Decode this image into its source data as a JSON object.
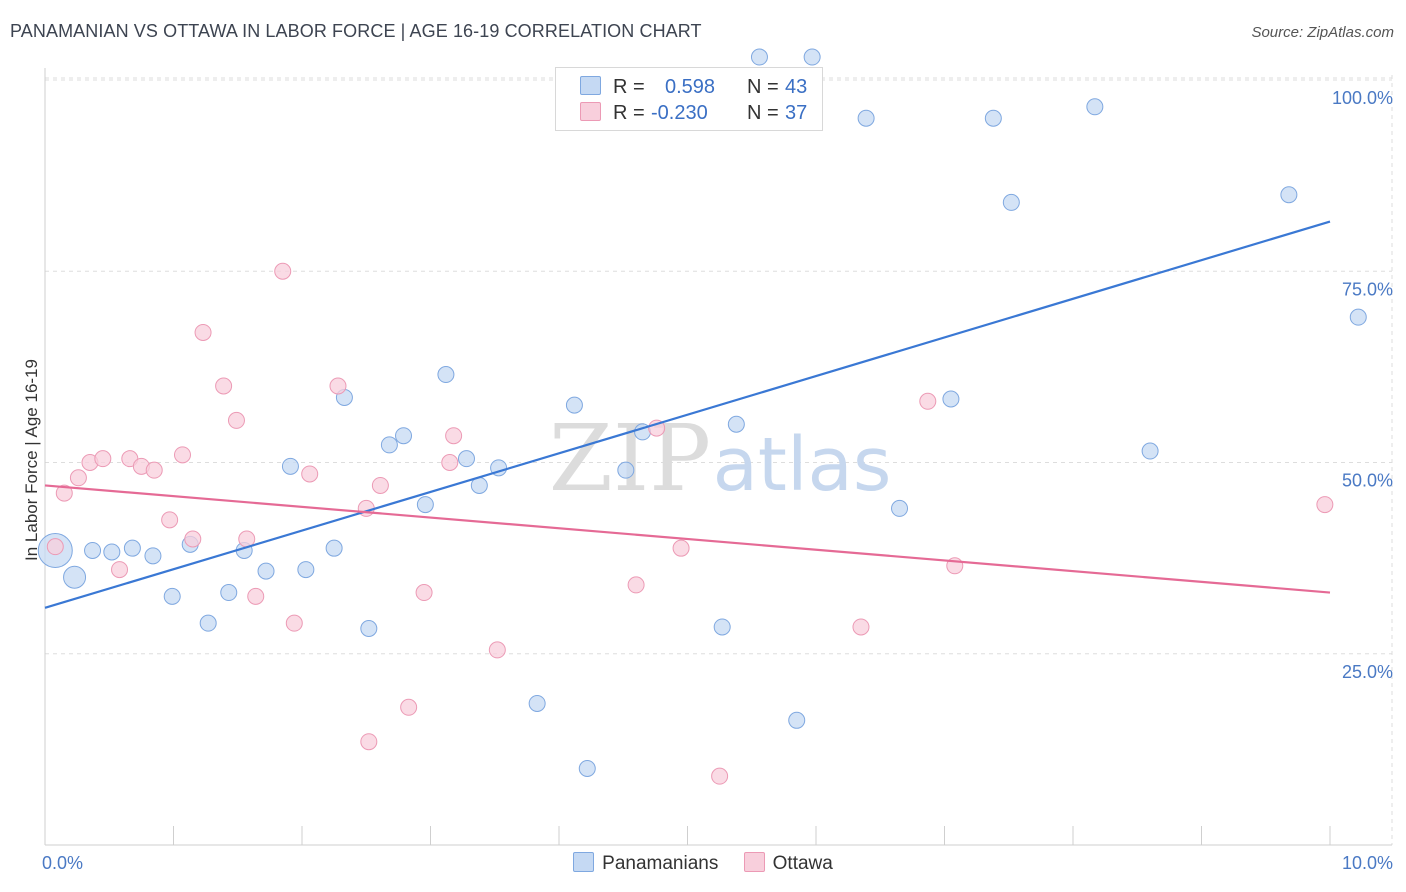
{
  "header": {
    "title": "PANAMANIAN VS OTTAWA IN LABOR FORCE | AGE 16-19 CORRELATION CHART",
    "source": "Source: ZipAtlas.com"
  },
  "watermark": {
    "zip": "ZIP",
    "atlas": "atlas"
  },
  "legend": {
    "rows": [
      {
        "r_label": "R =",
        "r_value": "0.598",
        "n_label": "N =",
        "n_value": "43",
        "color": "#9dbfea"
      },
      {
        "r_label": "R =",
        "r_value": "-0.230",
        "n_label": "N =",
        "n_value": "37",
        "color": "#f4a9bf"
      }
    ]
  },
  "bottom_legend": [
    {
      "label": "Panamanians",
      "color": "#9dbfea"
    },
    {
      "label": "Ottawa",
      "color": "#f4a9bf"
    }
  ],
  "colors": {
    "blue": "#3a78d4",
    "pink": "#e56a95",
    "blue_fill": "#c5d9f3",
    "pink_fill": "#f8cfdc"
  },
  "chart_data": {
    "type": "scatter",
    "title": "PANAMANIAN VS OTTAWA IN LABOR FORCE | AGE 16-19 CORRELATION CHART",
    "xlabel": "",
    "ylabel": "In Labor Force | Age 16-19",
    "xlim": [
      0,
      10
    ],
    "ylim": [
      0,
      102
    ],
    "x_tick_labels": [
      {
        "value": 0,
        "label": "0.0%"
      },
      {
        "value": 10,
        "label": "10.0%"
      }
    ],
    "y_tick_labels": [
      {
        "value": 25,
        "label": "25.0%"
      },
      {
        "value": 50,
        "label": "50.0%"
      },
      {
        "value": 75,
        "label": "75.0%"
      },
      {
        "value": 100,
        "label": "100.0%"
      }
    ],
    "series": [
      {
        "name": "Panamanians",
        "r": 0.598,
        "n": 43,
        "trend": {
          "x": [
            0,
            10
          ],
          "y": [
            31.0,
            81.5
          ]
        },
        "points": [
          [
            0.08,
            38.5,
            3
          ],
          [
            0.23,
            35.0,
            2
          ],
          [
            0.37,
            38.5,
            1
          ],
          [
            0.52,
            38.3,
            1
          ],
          [
            0.68,
            38.8,
            1
          ],
          [
            0.84,
            37.8,
            1
          ],
          [
            0.99,
            32.5,
            1
          ],
          [
            1.13,
            39.3,
            1
          ],
          [
            1.27,
            29.0,
            1
          ],
          [
            1.43,
            33.0,
            1
          ],
          [
            1.55,
            38.5,
            1
          ],
          [
            1.72,
            35.8,
            1
          ],
          [
            1.91,
            49.5,
            1
          ],
          [
            2.03,
            36.0,
            1
          ],
          [
            2.25,
            38.8,
            1
          ],
          [
            2.33,
            58.5,
            1
          ],
          [
            2.52,
            28.3,
            1
          ],
          [
            2.68,
            52.3,
            1
          ],
          [
            2.79,
            53.5,
            1
          ],
          [
            2.96,
            44.5,
            1
          ],
          [
            3.12,
            61.5,
            1
          ],
          [
            3.28,
            50.5,
            1
          ],
          [
            3.38,
            47.0,
            1
          ],
          [
            3.53,
            49.3,
            1
          ],
          [
            3.83,
            18.5,
            1
          ],
          [
            4.12,
            57.5,
            1
          ],
          [
            4.22,
            10.0,
            1
          ],
          [
            4.52,
            49.0,
            1
          ],
          [
            4.65,
            54.0,
            1
          ],
          [
            5.27,
            28.5,
            1
          ],
          [
            5.38,
            55.0,
            1
          ],
          [
            5.56,
            103.0,
            1
          ],
          [
            5.85,
            16.3,
            1
          ],
          [
            5.97,
            103.0,
            1
          ],
          [
            6.39,
            95.0,
            1
          ],
          [
            6.65,
            44.0,
            1
          ],
          [
            7.05,
            58.3,
            1
          ],
          [
            7.38,
            95.0,
            1
          ],
          [
            7.52,
            84.0,
            1
          ],
          [
            8.17,
            96.5,
            1
          ],
          [
            8.6,
            51.5,
            1
          ],
          [
            9.68,
            85.0,
            1
          ],
          [
            10.22,
            69.0,
            1
          ]
        ]
      },
      {
        "name": "Ottawa",
        "r": -0.23,
        "n": 37,
        "trend": {
          "x": [
            0,
            10
          ],
          "y": [
            47.0,
            33.0
          ]
        },
        "points": [
          [
            0.08,
            39.0,
            1
          ],
          [
            0.15,
            46.0,
            1
          ],
          [
            0.26,
            48.0,
            1
          ],
          [
            0.35,
            50.0,
            1
          ],
          [
            0.45,
            50.5,
            1
          ],
          [
            0.58,
            36.0,
            1
          ],
          [
            0.66,
            50.5,
            1
          ],
          [
            0.75,
            49.5,
            1
          ],
          [
            0.85,
            49.0,
            1
          ],
          [
            0.97,
            42.5,
            1
          ],
          [
            1.07,
            51.0,
            1
          ],
          [
            1.15,
            40.0,
            1
          ],
          [
            1.23,
            67.0,
            1
          ],
          [
            1.39,
            60.0,
            1
          ],
          [
            1.49,
            55.5,
            1
          ],
          [
            1.57,
            40.0,
            1
          ],
          [
            1.64,
            32.5,
            1
          ],
          [
            1.85,
            75.0,
            1
          ],
          [
            1.94,
            29.0,
            1
          ],
          [
            2.06,
            48.5,
            1
          ],
          [
            2.28,
            60.0,
            1
          ],
          [
            2.5,
            44.0,
            1
          ],
          [
            2.52,
            13.5,
            1
          ],
          [
            2.61,
            47.0,
            1
          ],
          [
            2.83,
            18.0,
            1
          ],
          [
            2.95,
            33.0,
            1
          ],
          [
            3.15,
            50.0,
            1
          ],
          [
            3.18,
            53.5,
            1
          ],
          [
            3.52,
            25.5,
            1
          ],
          [
            4.6,
            34.0,
            1
          ],
          [
            4.76,
            54.5,
            1
          ],
          [
            4.95,
            38.8,
            1
          ],
          [
            5.25,
            9.0,
            1
          ],
          [
            6.35,
            28.5,
            1
          ],
          [
            6.87,
            58.0,
            1
          ],
          [
            7.08,
            36.5,
            1
          ],
          [
            9.96,
            44.5,
            1
          ]
        ]
      }
    ]
  }
}
